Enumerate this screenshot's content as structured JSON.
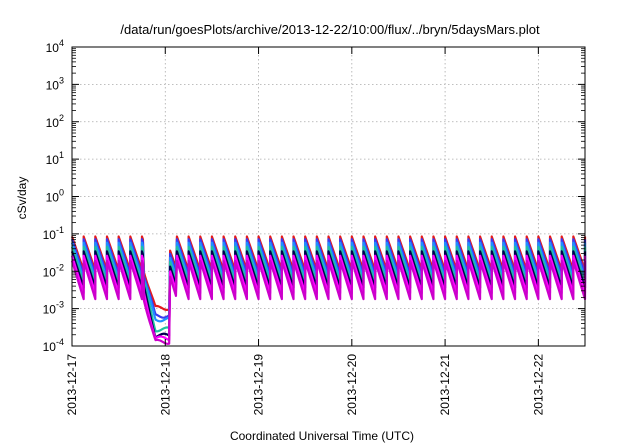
{
  "chart_data": {
    "type": "line",
    "title": "/data/run/goesPlots/archive/2013-12-22/10:00/flux/../bryn/5daysMars.plot",
    "xlabel": "Coordinated Universal Time (UTC)",
    "ylabel": "cSv/day",
    "yscale": "log",
    "ylim": [
      0.0001,
      10000
    ],
    "y_ticks": [
      {
        "base": "10",
        "exp": "-4"
      },
      {
        "base": "10",
        "exp": "-3"
      },
      {
        "base": "10",
        "exp": "-2"
      },
      {
        "base": "10",
        "exp": "-1"
      },
      {
        "base": "10",
        "exp": "0"
      },
      {
        "base": "10",
        "exp": "1"
      },
      {
        "base": "10",
        "exp": "2"
      },
      {
        "base": "10",
        "exp": "3"
      },
      {
        "base": "10",
        "exp": "4"
      }
    ],
    "xlim": [
      "2013-12-17 00:00",
      "2013-12-22 12:00"
    ],
    "x_ticks": [
      "2013-12-17",
      "2013-12-18",
      "2013-12-19",
      "2013-12-20",
      "2013-12-21",
      "2013-12-22"
    ],
    "grid": true,
    "legend": "none",
    "sawtooth_period_hours": 3,
    "data_gap": [
      "2013-12-17 18:30",
      "2013-12-18 01:00"
    ],
    "series": [
      {
        "color": "#e41a1c",
        "peak": 0.085,
        "trough": 0.0105,
        "gap_level": 0.00105
      },
      {
        "color": "#3a3af0",
        "peak": 0.072,
        "trough": 0.0082,
        "gap_level": 0.00065
      },
      {
        "color": "#1e90ff",
        "peak": 0.058,
        "trough": 0.0062,
        "gap_level": 0.00052
      },
      {
        "color": "#20c0a0",
        "peak": 0.045,
        "trough": 0.0048,
        "gap_level": 0.00028
      },
      {
        "color": "#000050",
        "peak": 0.034,
        "trough": 0.0036,
        "gap_level": 0.00019
      },
      {
        "color": "#ff00ff",
        "peak": 0.026,
        "trough": 0.0026,
        "gap_level": 0.00016
      },
      {
        "color": "#cc00cc",
        "peak": 0.019,
        "trough": 0.0018,
        "gap_level": 0.00013
      }
    ]
  }
}
